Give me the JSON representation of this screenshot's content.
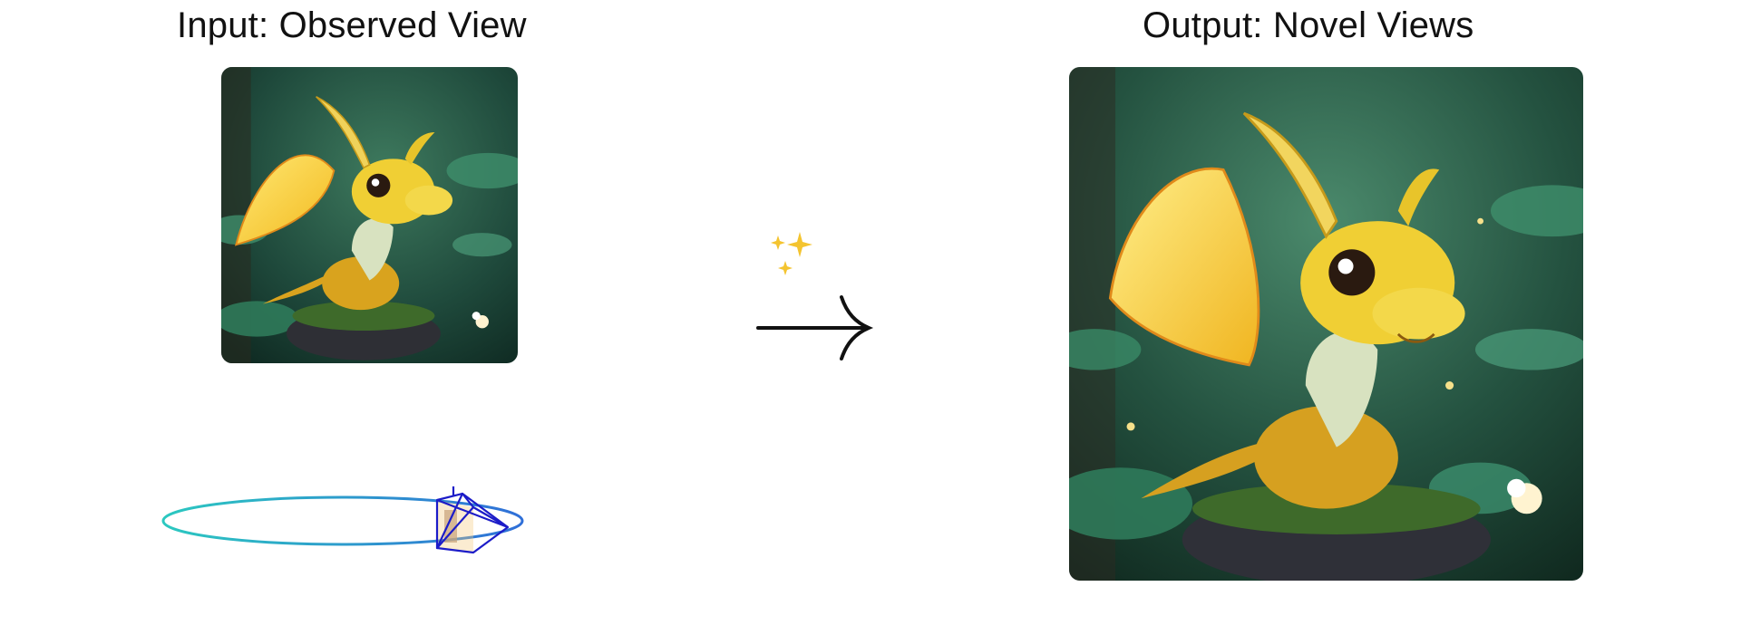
{
  "input": {
    "title": "Input: Observed View",
    "image_icon": "baby-yellow-dragon-in-forest-image"
  },
  "output": {
    "title": "Output: Novel Views",
    "image_icon": "baby-yellow-dragon-in-forest-image"
  },
  "transition": {
    "sparkle_icon": "sparkles-icon",
    "arrow_icon": "right-arrow-icon"
  },
  "camera": {
    "orbit_icon": "camera-orbit-icon",
    "frustum_icon": "camera-frustum-icon"
  },
  "colors": {
    "orbit_start": "#2bc8c0",
    "orbit_end": "#2f6fd8",
    "frustum": "#1c1cc8",
    "sparkle": "#f4c430",
    "dragon": "#e8c42a",
    "forest_bg": "#1f4a3c"
  }
}
